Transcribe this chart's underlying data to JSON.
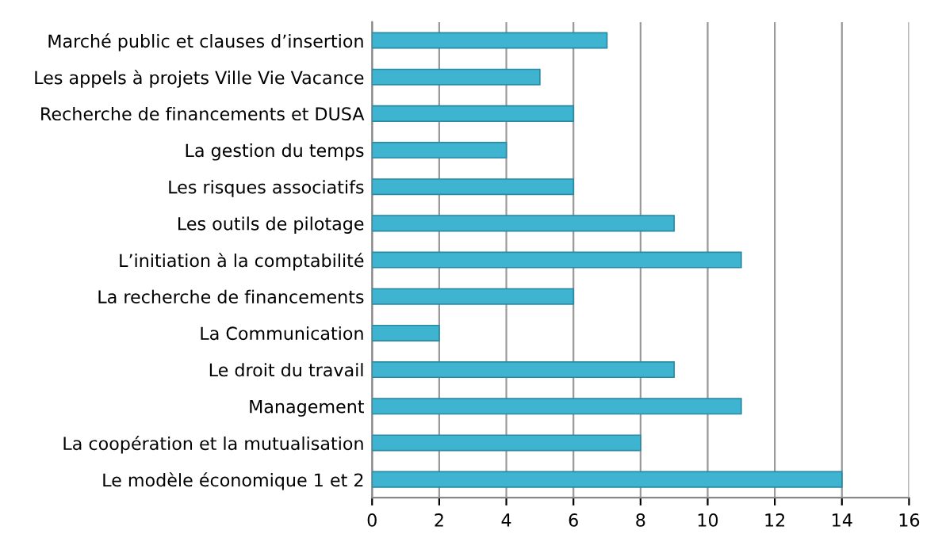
{
  "chart_data": {
    "type": "bar",
    "orientation": "horizontal",
    "categories": [
      "Marché public et clauses d’insertion",
      "Les appels à projets Ville Vie Vacance",
      "Recherche de financements et DUSA",
      "La gestion du temps",
      "Les risques associatifs",
      "Les outils de pilotage",
      "L’initiation à la comptabilité",
      "La recherche de financements",
      "La Communication",
      "Le droit du travail",
      "Management",
      "La coopération et la mutualisation",
      "Le modèle économique 1 et 2"
    ],
    "values": [
      7,
      5,
      6,
      4,
      6,
      9,
      11,
      6,
      2,
      9,
      11,
      8,
      14
    ],
    "color": "#3fb4d0",
    "xlim": [
      0,
      16
    ],
    "xticks": [
      0,
      2,
      4,
      6,
      8,
      10,
      12,
      14,
      16
    ],
    "grid": "x"
  }
}
